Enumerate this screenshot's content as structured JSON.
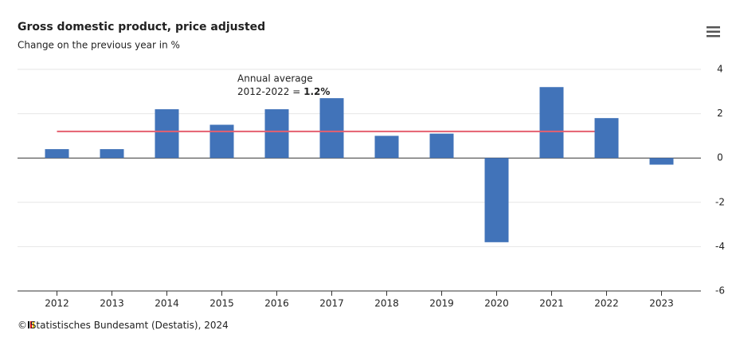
{
  "chart_data": {
    "type": "bar",
    "title": "Gross domestic product, price adjusted",
    "subtitle": "Change on the previous year in %",
    "categories": [
      "2012",
      "2013",
      "2014",
      "2015",
      "2016",
      "2017",
      "2018",
      "2019",
      "2020",
      "2021",
      "2022",
      "2023"
    ],
    "values": [
      0.4,
      0.4,
      2.2,
      1.5,
      2.2,
      2.7,
      1.0,
      1.1,
      -3.8,
      3.2,
      1.8,
      -0.3
    ],
    "color": "#4173b9",
    "ylim": [
      -6,
      4
    ],
    "yticks": [
      4,
      2,
      0,
      -2,
      -4,
      -6
    ],
    "grid": true,
    "average": {
      "value": 1.2,
      "from": "2012",
      "to": "2022",
      "color": "#e5606f",
      "label_lines": [
        "Annual average",
        "2012-2022 = "
      ],
      "value_label": "1.2%"
    },
    "source": "© Statistisches Bundesamt (Destatis), 2024"
  }
}
